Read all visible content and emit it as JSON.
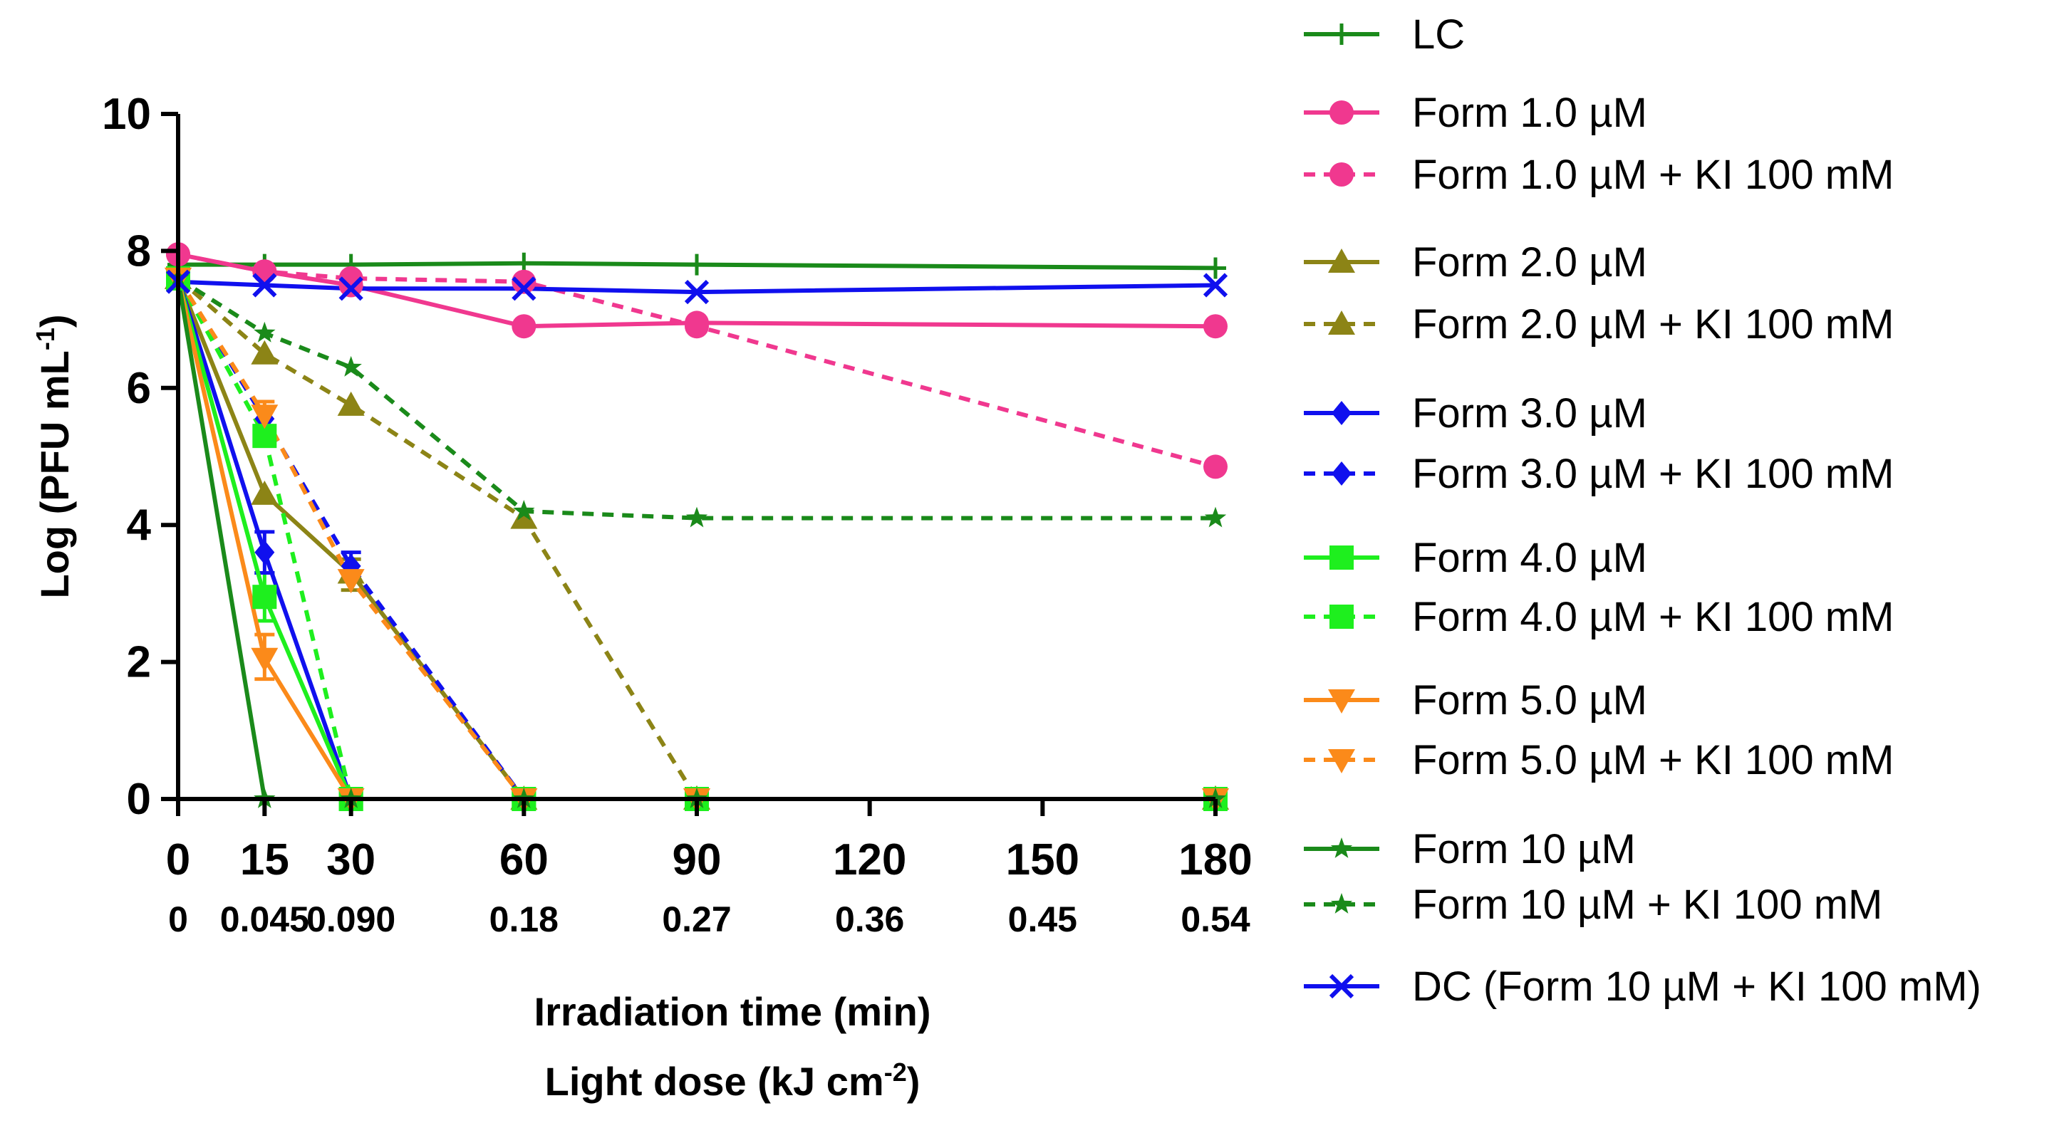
{
  "chart_data": {
    "type": "line",
    "xlabel": "Irradiation time (min)",
    "xlabel2_base": "Light dose (kJ cm",
    "xlabel2_sup": "-2",
    "xlabel2_end": ")",
    "ylabel_base": "Log (PFU mL",
    "ylabel_sup": "-1",
    "ylabel_end": ")",
    "xlim": [
      0,
      180
    ],
    "ylim": [
      0,
      10
    ],
    "xticks": [
      0,
      15,
      30,
      60,
      90,
      120,
      150,
      180
    ],
    "xtick_labels": [
      "0",
      "15",
      "30",
      "60",
      "90",
      "120",
      "150",
      "180"
    ],
    "dose_labels": [
      "0",
      "0.045",
      "0.090",
      "0.18",
      "0.27",
      "0.36",
      "0.45",
      "0.54"
    ],
    "yticks": [
      0,
      2,
      4,
      6,
      8,
      10
    ],
    "ytick_labels": [
      "0",
      "2",
      "4",
      "6",
      "8",
      "10"
    ],
    "colors": {
      "green": "#1a8a1a",
      "pink": "#f0388f",
      "olive": "#8c8416",
      "blue": "#1010ee",
      "lime": "#1eef1e",
      "orange": "#fb8a1a"
    },
    "series": [
      {
        "name": "LC",
        "label": "LC",
        "color": "#1a8a1a",
        "dash": false,
        "marker": "plus",
        "x": [
          0,
          15,
          30,
          60,
          90,
          180
        ],
        "y": [
          7.8,
          7.8,
          7.8,
          7.82,
          7.8,
          7.75
        ]
      },
      {
        "name": "Form 1.0 µM",
        "label": "Form 1.0 µM",
        "color": "#f0388f",
        "dash": false,
        "marker": "circle",
        "x": [
          0,
          15,
          30,
          60,
          90,
          180
        ],
        "y": [
          7.95,
          7.7,
          7.5,
          6.9,
          6.95,
          6.9
        ]
      },
      {
        "name": "Form 1.0 µM + KI 100 mM",
        "label": "Form 1.0 µM + KI 100 mM",
        "color": "#f0388f",
        "dash": true,
        "marker": "circle",
        "x": [
          0,
          15,
          30,
          60,
          90,
          180
        ],
        "y": [
          7.95,
          7.7,
          7.6,
          7.55,
          6.9,
          4.85
        ]
      },
      {
        "name": "Form 2.0 µM",
        "label": "Form 2.0 µM",
        "color": "#8c8416",
        "dash": false,
        "marker": "triangle",
        "x": [
          0,
          15,
          30,
          60,
          90,
          180
        ],
        "y": [
          7.6,
          4.45,
          3.3,
          0,
          0,
          0
        ]
      },
      {
        "name": "Form 2.0 µM + KI 100 mM",
        "label": "Form 2.0 µM + KI 100 mM",
        "color": "#8c8416",
        "dash": true,
        "marker": "triangle",
        "x": [
          0,
          15,
          30,
          60,
          90,
          180
        ],
        "y": [
          7.6,
          6.5,
          5.75,
          4.1,
          0,
          0
        ]
      },
      {
        "name": "Form 3.0 µM",
        "label": "Form 3.0 µM",
        "color": "#1010ee",
        "dash": false,
        "marker": "diamond",
        "x": [
          0,
          15,
          30,
          60,
          90,
          180
        ],
        "y": [
          7.6,
          3.6,
          0,
          0,
          0,
          0
        ]
      },
      {
        "name": "Form 3.0 µM + KI 100 mM",
        "label": "Form 3.0 µM + KI 100 mM",
        "color": "#1010ee",
        "dash": true,
        "marker": "diamond",
        "x": [
          0,
          15,
          30,
          60,
          90,
          180
        ],
        "y": [
          7.6,
          5.55,
          3.4,
          0,
          0,
          0
        ]
      },
      {
        "name": "Form 4.0 µM",
        "label": "Form 4.0 µM",
        "color": "#1eef1e",
        "dash": false,
        "marker": "square",
        "x": [
          0,
          15,
          30,
          60,
          90,
          180
        ],
        "y": [
          7.6,
          2.95,
          0,
          0,
          0,
          0
        ]
      },
      {
        "name": "Form 4.0 µM + KI 100 mM",
        "label": "Form 4.0 µM + KI 100 mM",
        "color": "#1eef1e",
        "dash": true,
        "marker": "square",
        "x": [
          0,
          15,
          30,
          60,
          90,
          180
        ],
        "y": [
          7.6,
          5.3,
          0,
          0,
          0,
          0
        ]
      },
      {
        "name": "Form 5.0 µM",
        "label": "Form 5.0 µM",
        "color": "#fb8a1a",
        "dash": false,
        "marker": "triangle-down",
        "x": [
          0,
          15,
          30,
          60,
          90,
          180
        ],
        "y": [
          7.6,
          2.05,
          0,
          0,
          0,
          0
        ]
      },
      {
        "name": "Form 5.0 µM + KI 100 mM",
        "label": "Form 5.0 µM + KI 100 mM",
        "color": "#fb8a1a",
        "dash": true,
        "marker": "triangle-down",
        "x": [
          0,
          15,
          30,
          60,
          90,
          180
        ],
        "y": [
          7.6,
          5.6,
          3.2,
          0,
          0,
          0
        ]
      },
      {
        "name": "Form 10 µM",
        "label": "Form 10 µM",
        "color": "#1a8a1a",
        "dash": false,
        "marker": "star",
        "x": [
          0,
          15,
          30,
          60,
          90,
          180
        ],
        "y": [
          7.6,
          0,
          0,
          0,
          0,
          0
        ]
      },
      {
        "name": "Form 10 µM + KI 100 mM",
        "label": "Form 10 µM + KI 100 mM",
        "color": "#1a8a1a",
        "dash": true,
        "marker": "star",
        "x": [
          0,
          15,
          30,
          60,
          90,
          180
        ],
        "y": [
          7.6,
          6.8,
          6.3,
          4.2,
          4.1,
          4.1
        ]
      },
      {
        "name": "DC (Form 10 µM + KI 100 mM)",
        "label": "DC (Form 10 µM + KI 100 mM)",
        "color": "#1010ee",
        "dash": false,
        "marker": "x",
        "x": [
          0,
          15,
          30,
          60,
          90,
          180
        ],
        "y": [
          7.55,
          7.5,
          7.45,
          7.45,
          7.4,
          7.5
        ]
      }
    ],
    "error_bars": [
      {
        "series": "Form 5.0 µM",
        "x": 15,
        "low": 1.75,
        "high": 2.4
      },
      {
        "series": "Form 4.0 µM",
        "x": 15,
        "low": 2.6,
        "high": 3.3
      },
      {
        "series": "Form 3.0 µM",
        "x": 15,
        "low": 3.3,
        "high": 3.9
      },
      {
        "series": "Form 5.0 µM + KI 100 mM",
        "x": 15,
        "low": 5.4,
        "high": 5.8
      },
      {
        "series": "Form 2.0 µM",
        "x": 30,
        "low": 3.05,
        "high": 3.5
      },
      {
        "series": "Form 3.0 µM + KI 100 mM",
        "x": 30,
        "low": 3.2,
        "high": 3.6
      }
    ]
  }
}
